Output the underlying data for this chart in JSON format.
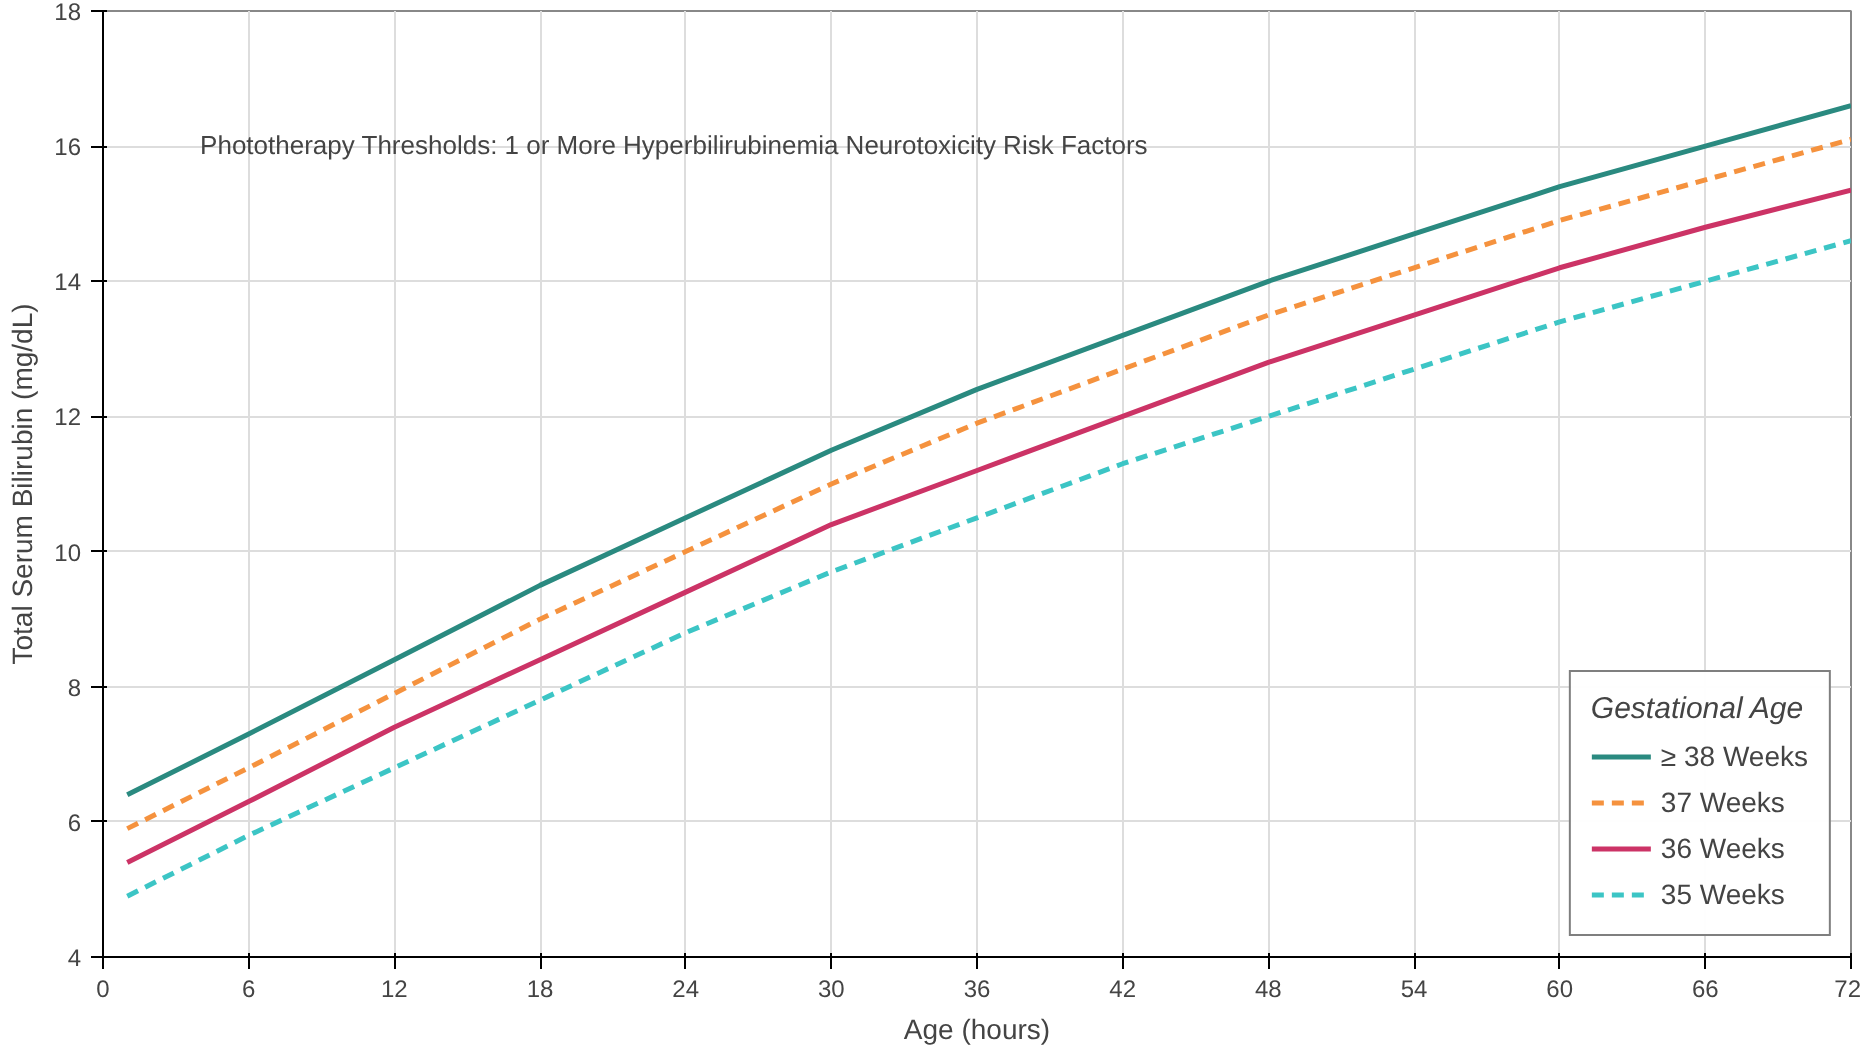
{
  "chart_data": {
    "type": "line",
    "xlabel": "Age (hours)",
    "ylabel": "Total Serum Bilirubin (mg/dL)",
    "legend_title": "Gestational Age",
    "annotations": [
      "Phototherapy Thresholds:  1 or More Hyperbilirubinemia Neurotoxicity Risk Factors"
    ],
    "x": [
      1,
      6,
      12,
      18,
      24,
      30,
      36,
      42,
      48,
      54,
      60,
      66,
      72
    ],
    "series": [
      {
        "name": "≥ 38 Weeks",
        "color": "#2a8a80",
        "line_style": "solid",
        "values": [
          6.4,
          7.3,
          8.4,
          9.5,
          10.5,
          11.5,
          12.4,
          13.2,
          14.0,
          14.7,
          15.4,
          16.0,
          16.6
        ]
      },
      {
        "name": "37 Weeks",
        "color": "#f5923e",
        "line_style": "dashed",
        "values": [
          5.9,
          6.8,
          7.9,
          9.0,
          10.0,
          11.0,
          11.9,
          12.7,
          13.5,
          14.2,
          14.9,
          15.5,
          16.1
        ]
      },
      {
        "name": "36 Weeks",
        "color": "#cc3366",
        "line_style": "solid",
        "values": [
          5.4,
          6.3,
          7.4,
          8.4,
          9.4,
          10.4,
          11.2,
          12.0,
          12.8,
          13.5,
          14.2,
          14.8,
          15.35
        ]
      },
      {
        "name": "35 Weeks",
        "color": "#3cc5c5",
        "line_style": "dashed",
        "values": [
          4.9,
          5.8,
          6.8,
          7.8,
          8.8,
          9.7,
          10.5,
          11.3,
          12.0,
          12.7,
          13.4,
          14.0,
          14.6
        ]
      }
    ],
    "xlim": [
      0,
      72
    ],
    "ylim": [
      4,
      18
    ],
    "xticks": [
      0,
      6,
      12,
      18,
      24,
      30,
      36,
      42,
      48,
      54,
      60,
      66,
      72
    ],
    "yticks": [
      4,
      6,
      8,
      10,
      12,
      14,
      16,
      18
    ],
    "grid": true,
    "legend": "bottom right",
    "marker": "none"
  }
}
